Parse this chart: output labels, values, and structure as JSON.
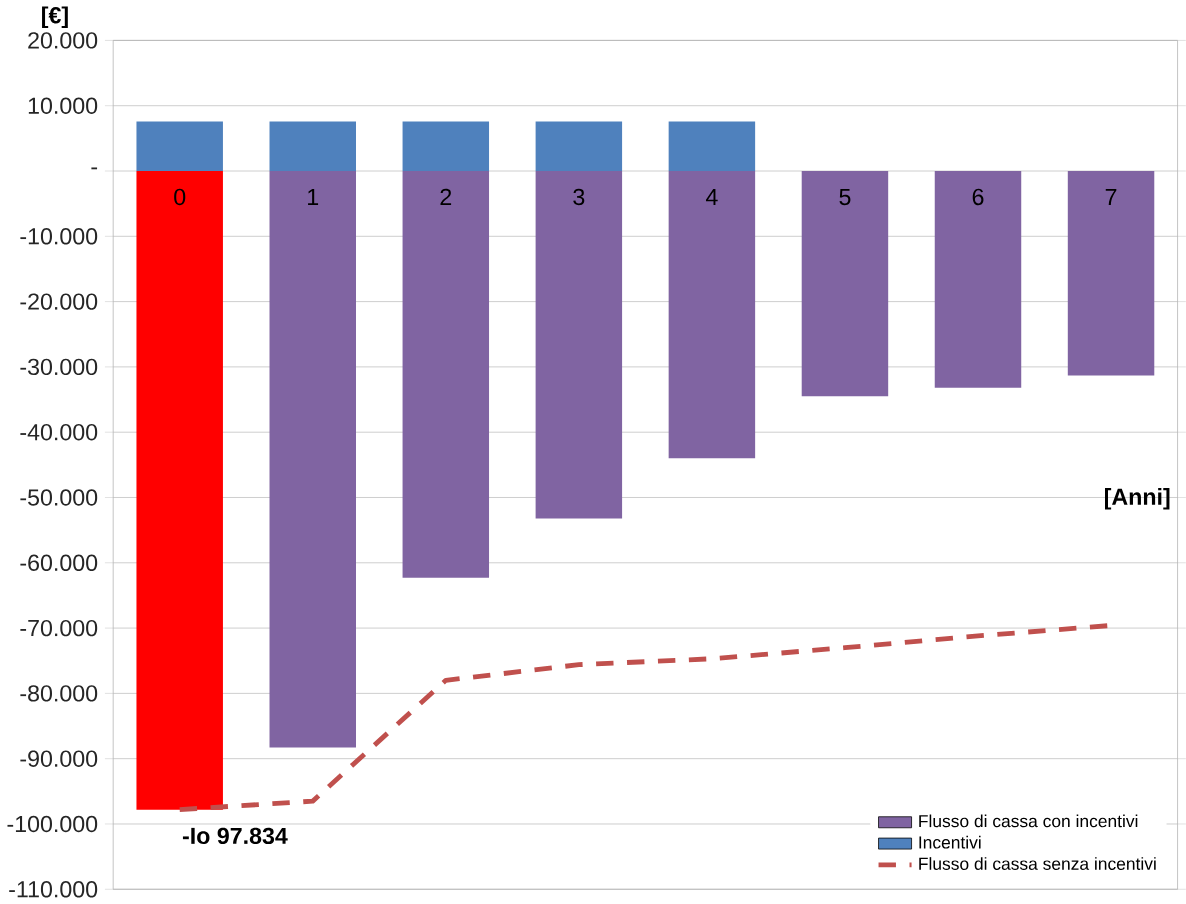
{
  "chart_data": {
    "type": "bar",
    "ylabel": "[€]",
    "xlabel": "[Anni]",
    "categories": [
      "0",
      "1",
      "2",
      "3",
      "4",
      "5",
      "6",
      "7"
    ],
    "series": [
      {
        "name": "Flusso di cassa con incentivi",
        "color": "#8064a2",
        "colors": [
          "#ff0000",
          "#8064a2",
          "#8064a2",
          "#8064a2",
          "#8064a2",
          "#8064a2",
          "#8064a2",
          "#8064a2"
        ],
        "values": [
          -97834,
          -88300,
          -62300,
          -53200,
          -44000,
          -34500,
          -33200,
          -31300
        ]
      },
      {
        "name": "Incentivi",
        "color": "#4f81bd",
        "values": [
          7600,
          7600,
          7600,
          7600,
          7600,
          null,
          null,
          null
        ]
      },
      {
        "name": "Flusso di cassa senza incentivi",
        "type": "line",
        "color": "#c0504d",
        "line_style": "dashed",
        "values": [
          -97800,
          -96500,
          -78000,
          -75600,
          -74700,
          -73000,
          -71200,
          -69600
        ]
      }
    ],
    "annotations": [
      {
        "text": "-Io 97.834",
        "x": "0",
        "y": -97834
      }
    ],
    "ylim": [
      -110000,
      20000
    ],
    "yticks": [
      {
        "value": 20000,
        "label": "20.000"
      },
      {
        "value": 10000,
        "label": "10.000"
      },
      {
        "value": 0,
        "label": "-"
      },
      {
        "value": -10000,
        "label": "-10.000"
      },
      {
        "value": -20000,
        "label": "-20.000"
      },
      {
        "value": -30000,
        "label": "-30.000"
      },
      {
        "value": -40000,
        "label": "-40.000"
      },
      {
        "value": -50000,
        "label": "-50.000"
      },
      {
        "value": -60000,
        "label": "-60.000"
      },
      {
        "value": -70000,
        "label": "-70.000"
      },
      {
        "value": -80000,
        "label": "-80.000"
      },
      {
        "value": -90000,
        "label": "-90.000"
      },
      {
        "value": -100000,
        "label": "-100.000"
      },
      {
        "value": -110000,
        "label": "-110.000"
      }
    ],
    "grid": true,
    "legend": "bottom right",
    "stacked": true
  }
}
